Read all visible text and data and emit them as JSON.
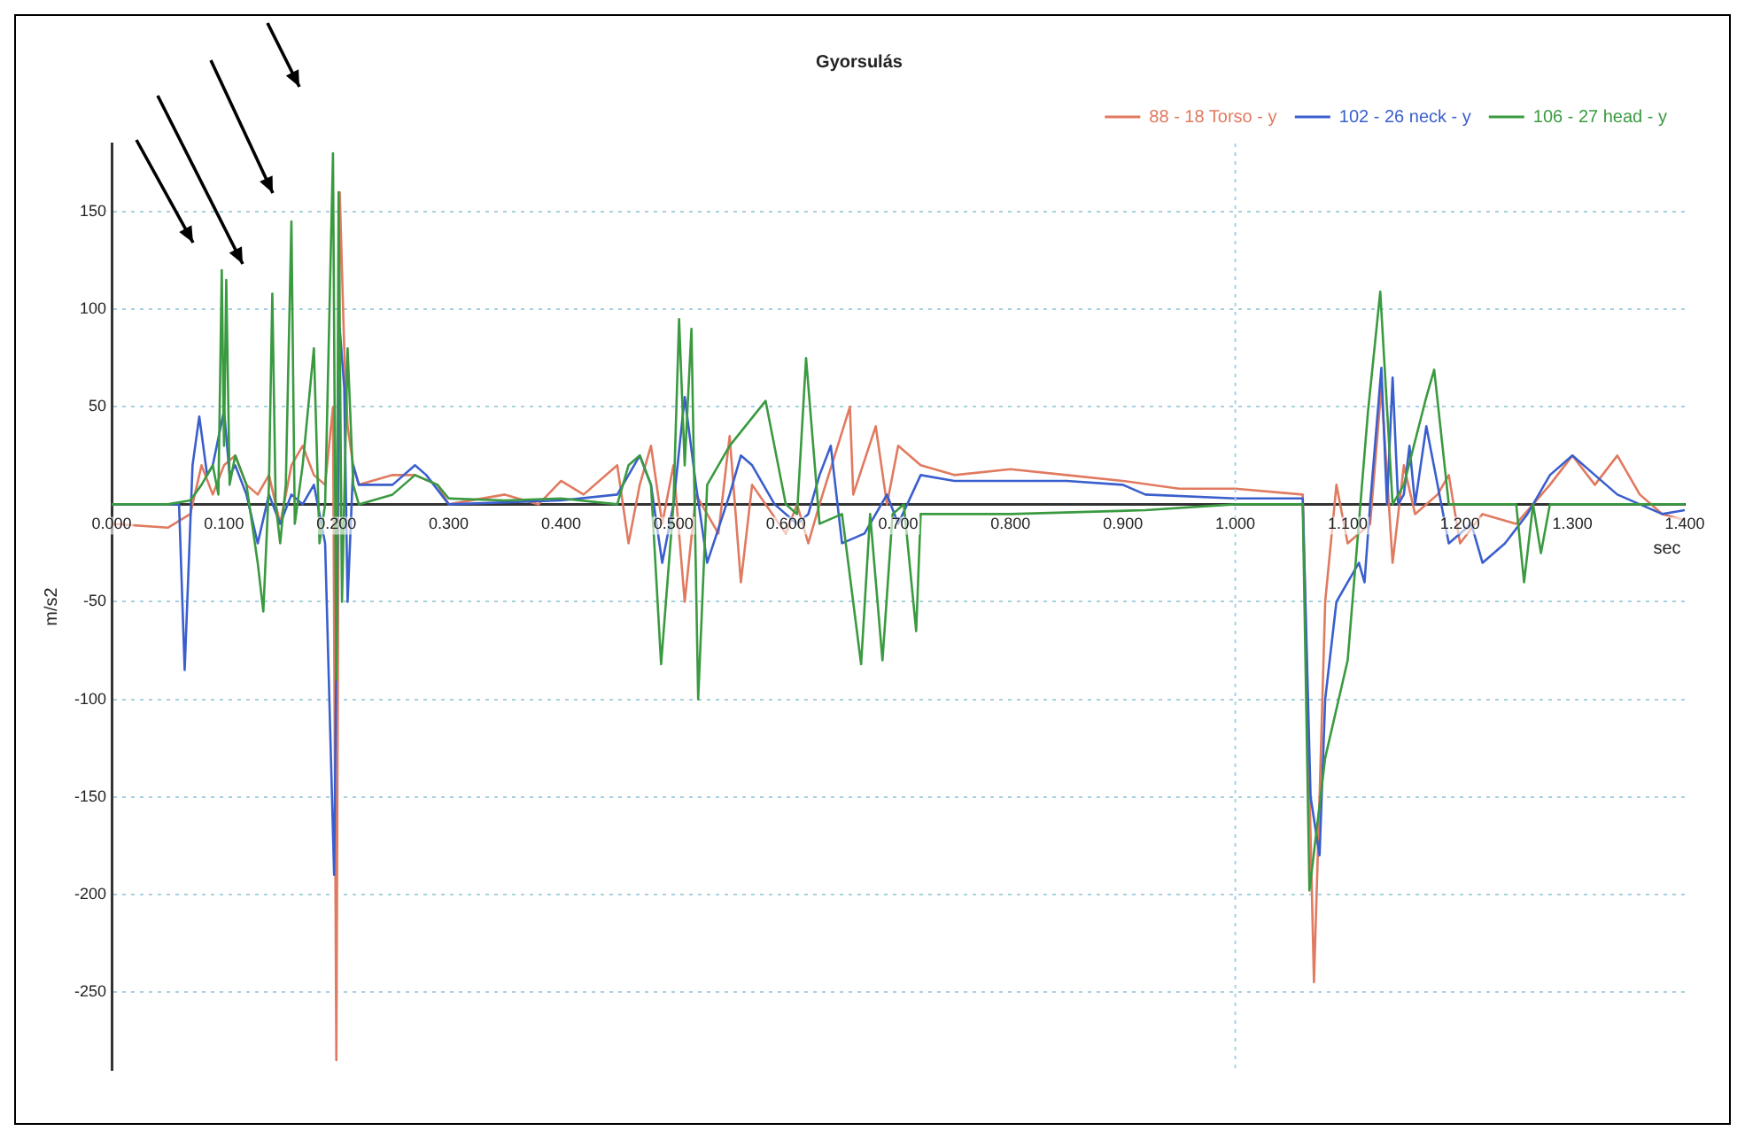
{
  "chart_data": {
    "type": "line",
    "title": "Gyorsulás",
    "xlabel": "sec",
    "ylabel": "m/s2",
    "xlim": [
      0,
      1.4
    ],
    "xticks": [
      {
        "value": 0,
        "label": "0.000"
      },
      {
        "value": 0.1,
        "label": "0.100"
      },
      {
        "value": 0.2,
        "label": "0.200"
      },
      {
        "value": 0.3,
        "label": "0.300"
      },
      {
        "value": 0.4,
        "label": "0.400"
      },
      {
        "value": 0.5,
        "label": "0.500"
      },
      {
        "value": 0.6,
        "label": "0.600"
      },
      {
        "value": 0.7,
        "label": "0.700"
      },
      {
        "value": 0.8,
        "label": "0.800"
      },
      {
        "value": 0.9,
        "label": "0.900"
      },
      {
        "value": 1.0,
        "label": "1.000"
      },
      {
        "value": 1.1,
        "label": "1.100"
      },
      {
        "value": 1.2,
        "label": "1.200"
      },
      {
        "value": 1.3,
        "label": "1.300"
      },
      {
        "value": 1.4,
        "label": "1.400"
      }
    ],
    "ylim": [
      -290,
      185
    ],
    "yticks": [
      -250,
      -200,
      -150,
      -100,
      -50,
      50,
      100,
      150
    ],
    "grid": "y",
    "legend": "top right",
    "marker": "none",
    "line_style": "solid",
    "ref_lines": [
      {
        "axis": "x",
        "value": 1.0,
        "color": "#a8d0e0",
        "line_style": "dotted"
      }
    ],
    "series": [
      {
        "name": "88 - 18 Torso - y",
        "color": "#e07a60",
        "x": [
          0,
          0.05,
          0.07,
          0.08,
          0.09,
          0.1,
          0.11,
          0.12,
          0.13,
          0.14,
          0.15,
          0.16,
          0.17,
          0.18,
          0.19,
          0.197,
          0.2,
          0.203,
          0.207,
          0.21,
          0.215,
          0.22,
          0.25,
          0.27,
          0.29,
          0.3,
          0.35,
          0.38,
          0.4,
          0.42,
          0.45,
          0.46,
          0.47,
          0.48,
          0.49,
          0.5,
          0.51,
          0.52,
          0.54,
          0.55,
          0.56,
          0.57,
          0.6,
          0.61,
          0.62,
          0.63,
          0.657,
          0.66,
          0.68,
          0.69,
          0.7,
          0.72,
          0.75,
          0.8,
          0.85,
          0.9,
          0.95,
          1.0,
          1.06,
          1.07,
          1.075,
          1.08,
          1.09,
          1.1,
          1.12,
          1.13,
          1.14,
          1.15,
          1.16,
          1.18,
          1.19,
          1.2,
          1.22,
          1.25,
          1.28,
          1.3,
          1.32,
          1.34,
          1.36,
          1.38,
          1.4
        ],
        "values": [
          -10,
          -12,
          -5,
          20,
          5,
          20,
          25,
          10,
          5,
          15,
          -10,
          20,
          30,
          15,
          10,
          50,
          -285,
          160,
          80,
          40,
          20,
          10,
          15,
          15,
          10,
          0,
          5,
          0,
          12,
          5,
          20,
          -20,
          10,
          30,
          -10,
          20,
          -50,
          5,
          -15,
          35,
          -40,
          10,
          -15,
          0,
          -20,
          0,
          50,
          5,
          40,
          0,
          30,
          20,
          15,
          18,
          15,
          12,
          8,
          8,
          5,
          -245,
          -150,
          -50,
          10,
          -20,
          -10,
          60,
          -30,
          20,
          -5,
          5,
          15,
          -20,
          -5,
          -10,
          10,
          25,
          10,
          25,
          5,
          -5,
          -8
        ]
      },
      {
        "name": "102 - 26 neck - y",
        "color": "#3a5fcd",
        "x": [
          0,
          0.06,
          0.065,
          0.072,
          0.078,
          0.085,
          0.09,
          0.1,
          0.105,
          0.11,
          0.12,
          0.13,
          0.14,
          0.15,
          0.16,
          0.17,
          0.18,
          0.19,
          0.198,
          0.203,
          0.207,
          0.21,
          0.215,
          0.22,
          0.25,
          0.27,
          0.28,
          0.3,
          0.4,
          0.45,
          0.47,
          0.48,
          0.49,
          0.5,
          0.51,
          0.52,
          0.53,
          0.55,
          0.56,
          0.57,
          0.59,
          0.61,
          0.62,
          0.63,
          0.64,
          0.65,
          0.67,
          0.69,
          0.7,
          0.72,
          0.75,
          0.8,
          0.85,
          0.9,
          0.92,
          1.0,
          1.06,
          1.067,
          1.075,
          1.08,
          1.09,
          1.1,
          1.11,
          1.115,
          1.12,
          1.13,
          1.135,
          1.14,
          1.145,
          1.15,
          1.155,
          1.16,
          1.17,
          1.18,
          1.19,
          1.2,
          1.21,
          1.22,
          1.24,
          1.26,
          1.28,
          1.3,
          1.32,
          1.34,
          1.36,
          1.38,
          1.4
        ],
        "values": [
          0,
          0,
          -85,
          20,
          45,
          15,
          20,
          48,
          15,
          20,
          5,
          -20,
          5,
          -10,
          5,
          0,
          10,
          -20,
          -190,
          90,
          60,
          -50,
          20,
          10,
          10,
          20,
          15,
          0,
          2,
          5,
          25,
          10,
          -30,
          0,
          55,
          10,
          -30,
          5,
          25,
          20,
          0,
          -10,
          -5,
          15,
          30,
          -20,
          -15,
          5,
          -10,
          15,
          12,
          12,
          12,
          10,
          5,
          3,
          3,
          -150,
          -180,
          -100,
          -50,
          -40,
          -30,
          -40,
          0,
          70,
          0,
          65,
          0,
          5,
          30,
          0,
          40,
          10,
          -20,
          -15,
          -10,
          -30,
          -20,
          -5,
          15,
          25,
          15,
          5,
          0,
          -5,
          -3
        ]
      },
      {
        "name": "106 - 27 head - y",
        "color": "#3a9a40",
        "x": [
          0,
          0.05,
          0.07,
          0.08,
          0.09,
          0.095,
          0.098,
          0.1,
          0.102,
          0.105,
          0.11,
          0.12,
          0.13,
          0.135,
          0.14,
          0.143,
          0.146,
          0.15,
          0.155,
          0.16,
          0.163,
          0.17,
          0.18,
          0.185,
          0.19,
          0.197,
          0.2,
          0.202,
          0.205,
          0.21,
          0.215,
          0.22,
          0.25,
          0.27,
          0.29,
          0.3,
          0.35,
          0.4,
          0.45,
          0.46,
          0.47,
          0.48,
          0.489,
          0.5,
          0.505,
          0.51,
          0.516,
          0.522,
          0.53,
          0.55,
          0.582,
          0.6,
          0.61,
          0.618,
          0.63,
          0.65,
          0.667,
          0.675,
          0.686,
          0.695,
          0.705,
          0.716,
          0.72,
          0.8,
          0.92,
          1.0,
          1.06,
          1.066,
          1.08,
          1.1,
          1.118,
          1.129,
          1.14,
          1.15,
          1.17,
          1.177,
          1.19,
          1.25,
          1.257,
          1.265,
          1.272,
          1.28,
          1.4
        ],
        "values": [
          0,
          0,
          2,
          10,
          20,
          5,
          120,
          30,
          115,
          10,
          25,
          10,
          -30,
          -55,
          10,
          108,
          0,
          -20,
          10,
          145,
          -10,
          20,
          80,
          -20,
          0,
          180,
          -90,
          160,
          -50,
          80,
          10,
          0,
          5,
          15,
          10,
          3,
          2,
          3,
          0,
          20,
          25,
          10,
          -82,
          0,
          95,
          20,
          90,
          -100,
          10,
          30,
          53,
          0,
          -5,
          75,
          -10,
          -5,
          -82,
          -5,
          -80,
          -5,
          0,
          -65,
          -5,
          -5,
          -3,
          0,
          0,
          -198,
          -130,
          -80,
          47,
          109,
          0,
          10,
          55,
          69,
          0,
          0,
          -40,
          0,
          -25,
          0,
          0
        ]
      }
    ]
  }
}
